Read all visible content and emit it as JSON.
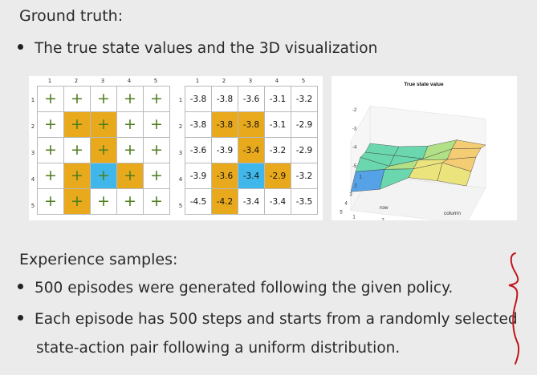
{
  "ground_truth_heading": "Ground truth:",
  "bullet1": "The true state values and the 3D visualization",
  "policy_grid": {
    "col_labels": [
      "1",
      "2",
      "3",
      "4",
      "5"
    ],
    "row_labels": [
      "1",
      "2",
      "3",
      "4",
      "5"
    ],
    "cells": [
      [
        "w",
        "w",
        "w",
        "w",
        "w"
      ],
      [
        "w",
        "o",
        "o",
        "w",
        "w"
      ],
      [
        "w",
        "w",
        "o",
        "w",
        "w"
      ],
      [
        "w",
        "o",
        "b",
        "o",
        "w"
      ],
      [
        "w",
        "o",
        "w",
        "w",
        "w"
      ]
    ],
    "action_symbol": "+"
  },
  "value_grid": {
    "col_labels": [
      "1",
      "2",
      "3",
      "4",
      "5"
    ],
    "row_labels": [
      "1",
      "2",
      "3",
      "4",
      "5"
    ],
    "values": [
      [
        "-3.8",
        "-3.8",
        "-3.6",
        "-3.1",
        "-3.2"
      ],
      [
        "-3.8",
        "-3.8",
        "-3.8",
        "-3.1",
        "-2.9"
      ],
      [
        "-3.6",
        "-3.9",
        "-3.4",
        "-3.2",
        "-2.9"
      ],
      [
        "-3.9",
        "-3.6",
        "-3.4",
        "-2.9",
        "-3.2"
      ],
      [
        "-4.5",
        "-4.2",
        "-3.4",
        "-3.4",
        "-3.5"
      ]
    ],
    "colors": [
      [
        "w",
        "w",
        "w",
        "w",
        "w"
      ],
      [
        "w",
        "o",
        "o",
        "w",
        "w"
      ],
      [
        "w",
        "w",
        "o",
        "w",
        "w"
      ],
      [
        "w",
        "o",
        "b",
        "o",
        "w"
      ],
      [
        "w",
        "o",
        "w",
        "w",
        "w"
      ]
    ]
  },
  "surface_plot": {
    "title": "True state value",
    "z_ticks": [
      "-2",
      "-3",
      "-4",
      "-5"
    ],
    "row_ticks": [
      "1",
      "2",
      "3",
      "4",
      "5"
    ],
    "col_ticks": [
      "1",
      "2",
      "3",
      "4",
      "5"
    ],
    "row_label": "row",
    "col_label": "column"
  },
  "chart_data": {
    "type": "heatmap",
    "title": "True state value",
    "rows": [
      "1",
      "2",
      "3",
      "4",
      "5"
    ],
    "columns": [
      "1",
      "2",
      "3",
      "4",
      "5"
    ],
    "values": [
      [
        -3.8,
        -3.8,
        -3.6,
        -3.1,
        -3.2
      ],
      [
        -3.8,
        -3.8,
        -3.8,
        -3.1,
        -2.9
      ],
      [
        -3.6,
        -3.9,
        -3.4,
        -3.2,
        -2.9
      ],
      [
        -3.9,
        -3.6,
        -3.4,
        -2.9,
        -3.2
      ],
      [
        -4.5,
        -4.2,
        -3.4,
        -3.4,
        -3.5
      ]
    ],
    "xlabel": "column",
    "ylabel": "row",
    "zlim": [
      -5,
      -2
    ]
  },
  "experience_heading": "Experience samples:",
  "bullet2": "500 episodes were generated following the given policy.",
  "bullet3_line1": "Each episode has 500 steps and starts from a randomly selected",
  "bullet3_line2": "state-action pair following a uniform distribution.",
  "colors": {
    "orange": "#e9a91d",
    "blue": "#3fb7ea",
    "plus": "#4d7e1e",
    "bracket": "#c0161b"
  }
}
